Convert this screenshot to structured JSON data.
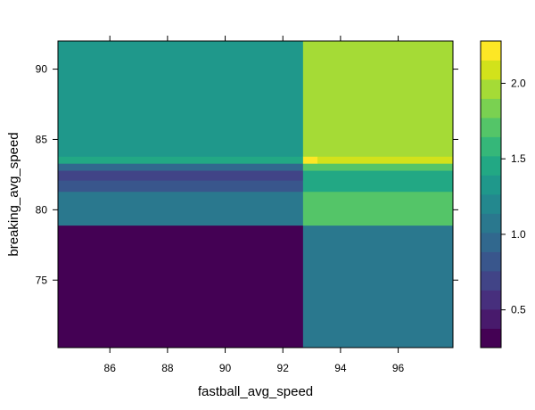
{
  "chart_data": {
    "type": "heatmap",
    "title": "",
    "xlabel": "fastball_avg_speed",
    "ylabel": "breaking_avg_speed",
    "xlim": [
      84.2,
      97.9
    ],
    "ylim": [
      70.2,
      92.0
    ],
    "x_ticks": [
      86,
      88,
      90,
      92,
      94,
      96
    ],
    "y_ticks": [
      75,
      80,
      85,
      90
    ],
    "grid": false,
    "cells": [
      {
        "x0": 84.2,
        "x1": 92.7,
        "y0": 70.2,
        "y1": 78.9,
        "value": 0.3
      },
      {
        "x0": 84.2,
        "x1": 92.7,
        "y0": 78.9,
        "y1": 81.3,
        "value": 1.05
      },
      {
        "x0": 84.2,
        "x1": 92.7,
        "y0": 81.3,
        "y1": 82.1,
        "value": 0.8
      },
      {
        "x0": 84.2,
        "x1": 92.7,
        "y0": 82.1,
        "y1": 82.8,
        "value": 0.7
      },
      {
        "x0": 84.2,
        "x1": 92.7,
        "y0": 82.8,
        "y1": 83.3,
        "value": 0.95
      },
      {
        "x0": 84.2,
        "x1": 92.7,
        "y0": 83.3,
        "y1": 83.8,
        "value": 1.45
      },
      {
        "x0": 84.2,
        "x1": 92.7,
        "y0": 83.8,
        "y1": 92.0,
        "value": 1.35
      },
      {
        "x0": 92.7,
        "x1": 97.9,
        "y0": 70.2,
        "y1": 78.9,
        "value": 1.1
      },
      {
        "x0": 92.7,
        "x1": 97.9,
        "y0": 78.9,
        "y1": 81.3,
        "value": 1.75
      },
      {
        "x0": 92.7,
        "x1": 97.9,
        "y0": 81.3,
        "y1": 82.1,
        "value": 1.4
      },
      {
        "x0": 92.7,
        "x1": 97.9,
        "y0": 82.1,
        "y1": 82.8,
        "value": 1.5
      },
      {
        "x0": 92.7,
        "x1": 97.9,
        "y0": 82.8,
        "y1": 83.3,
        "value": 1.7
      },
      {
        "x0": 92.7,
        "x1": 93.2,
        "y0": 83.3,
        "y1": 83.8,
        "value": 2.25
      },
      {
        "x0": 93.2,
        "x1": 97.9,
        "y0": 83.3,
        "y1": 83.8,
        "value": 2.1
      },
      {
        "x0": 92.7,
        "x1": 97.9,
        "y0": 83.8,
        "y1": 92.0,
        "value": 1.95
      }
    ],
    "colorbar": {
      "min": 0.25,
      "max": 2.28,
      "ticks": [
        "0.5",
        "1.0",
        "1.5",
        "2.0"
      ],
      "tick_values": [
        0.5,
        1.0,
        1.5,
        2.0
      ],
      "levels": 16,
      "palette": [
        "#440154",
        "#481A6C",
        "#472F7D",
        "#414487",
        "#39568C",
        "#31688E",
        "#2A788E",
        "#23888E",
        "#1F988B",
        "#22A884",
        "#35B779",
        "#54C568",
        "#7AD151",
        "#A5DB36",
        "#D2E21B",
        "#FDE725"
      ]
    }
  }
}
